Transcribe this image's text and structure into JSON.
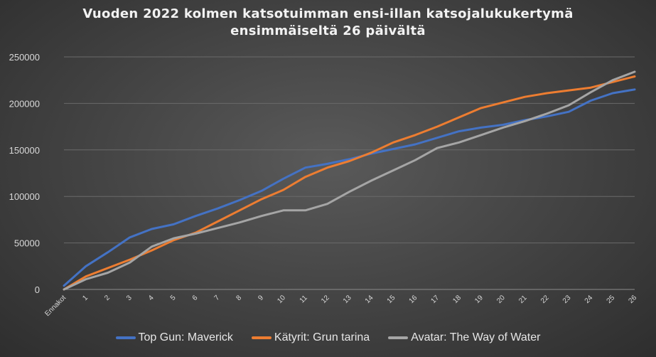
{
  "chart_data": {
    "type": "line",
    "title_lines": [
      "Vuoden  2022 kolmen  katsotuimman  ensi-illan  katsojalukukertymä",
      "ensimmäiseltä  26  päivältä"
    ],
    "xlabel": "",
    "ylabel": "",
    "categories": [
      "Ennakot",
      "1",
      "2",
      "3",
      "4",
      "5",
      "6",
      "7",
      "8",
      "9",
      "10",
      "11",
      "12",
      "13",
      "14",
      "15",
      "16",
      "17",
      "18",
      "19",
      "20",
      "21",
      "22",
      "23",
      "24",
      "25",
      "26"
    ],
    "ylim": [
      0,
      250000
    ],
    "yticks": [
      "0",
      "50000",
      "100000",
      "150000",
      "200000",
      "250000"
    ],
    "grid": true,
    "legend_position": "bottom",
    "series": [
      {
        "name": "Top Gun: Maverick",
        "color": "#4472C4",
        "values": [
          4000,
          25000,
          40000,
          56000,
          65000,
          70000,
          79000,
          87000,
          96000,
          106000,
          119000,
          131000,
          135000,
          140000,
          146000,
          151000,
          156000,
          163000,
          170000,
          174000,
          177000,
          182000,
          186000,
          191000,
          203000,
          211000,
          215000
        ]
      },
      {
        "name": "Kätyrit: Grun tarina",
        "color": "#ED7D31",
        "values": [
          0,
          14000,
          23000,
          32000,
          42000,
          53000,
          61000,
          73000,
          85000,
          97000,
          107000,
          121000,
          131000,
          138000,
          147000,
          158000,
          166000,
          175000,
          185000,
          195000,
          201000,
          207000,
          211000,
          214000,
          217000,
          223000,
          229000
        ]
      },
      {
        "name": "Avatar: The Way of Water",
        "color": "#A5A5A5",
        "values": [
          0,
          11000,
          18000,
          29000,
          46000,
          55000,
          60000,
          66000,
          72000,
          79000,
          85000,
          85000,
          92000,
          105000,
          117000,
          128000,
          139000,
          152000,
          158000,
          166000,
          174000,
          181000,
          189000,
          198000,
          212000,
          225000,
          234000
        ]
      }
    ]
  }
}
